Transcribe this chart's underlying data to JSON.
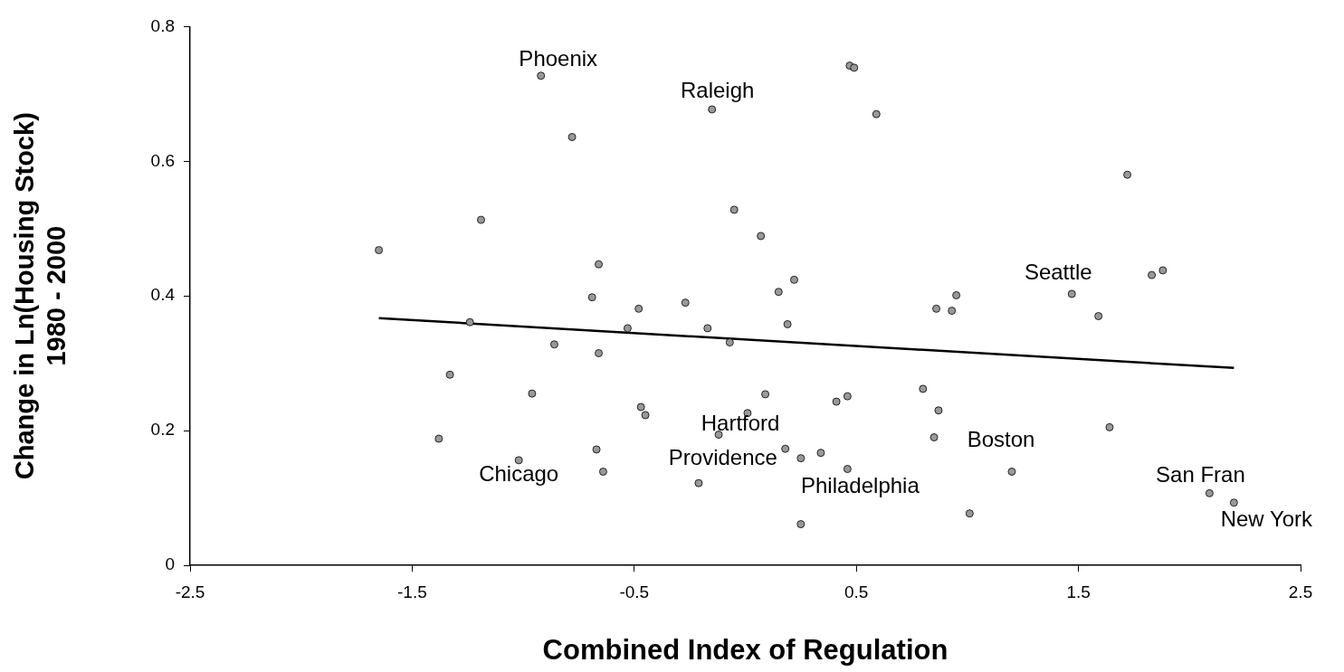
{
  "chart_data": {
    "type": "scatter",
    "xlabel": "Combined Index of Regulation",
    "ylabel": "Change in Ln(Housing Stock)\n1980 - 2000",
    "xlim": [
      -2.5,
      2.5
    ],
    "xticks": [
      -2.5,
      -1.5,
      -0.5,
      0.5,
      1.5,
      2.5
    ],
    "ylim": [
      0,
      0.8
    ],
    "yticks": [
      0,
      0.2,
      0.4,
      0.6,
      0.8
    ],
    "legend": false,
    "series": [
      {
        "color": "#999999",
        "marker": "circle",
        "x": [
          -1.65,
          -1.19,
          -1.24,
          -1.33,
          -1.38,
          -1.02,
          -0.96,
          -0.92,
          -0.78,
          -0.86,
          -0.69,
          -0.66,
          -0.66,
          -0.67,
          -0.64,
          -0.53,
          -0.48,
          -0.47,
          -0.45,
          -0.27,
          -0.17,
          -0.15,
          -0.12,
          -0.21,
          -0.05,
          -0.07,
          0.01,
          0.07,
          0.09,
          0.15,
          0.19,
          0.22,
          0.18,
          0.25,
          0.25,
          0.34,
          0.41,
          0.46,
          0.47,
          0.49,
          0.46,
          0.59,
          0.8,
          0.86,
          0.93,
          0.95,
          0.87,
          0.85,
          1.01,
          1.2,
          1.47,
          1.59,
          1.64,
          1.72,
          1.83,
          1.88,
          2.09,
          2.2
        ],
        "values": [
          0.468,
          0.513,
          0.361,
          0.283,
          0.188,
          0.156,
          0.255,
          0.727,
          0.636,
          0.328,
          0.398,
          0.447,
          0.315,
          0.172,
          0.139,
          0.352,
          0.381,
          0.235,
          0.223,
          0.39,
          0.352,
          0.677,
          0.194,
          0.122,
          0.528,
          0.331,
          0.226,
          0.489,
          0.254,
          0.406,
          0.358,
          0.424,
          0.173,
          0.159,
          0.061,
          0.167,
          0.243,
          0.251,
          0.742,
          0.739,
          0.143,
          0.67,
          0.262,
          0.381,
          0.378,
          0.401,
          0.23,
          0.19,
          0.077,
          0.139,
          0.403,
          0.37,
          0.205,
          0.58,
          0.431,
          0.438,
          0.107,
          0.093
        ]
      },
      {
        "type": "line",
        "color": "#000000",
        "x": [
          -1.65,
          2.2
        ],
        "values": [
          0.367,
          0.293
        ]
      }
    ],
    "annotations": [
      {
        "text": "Phoenix",
        "x": -0.92,
        "y": 0.727
      },
      {
        "text": "Raleigh",
        "x": -0.15,
        "y": 0.677
      },
      {
        "text": "Hartford",
        "x": -0.12,
        "y": 0.194
      },
      {
        "text": "Providence",
        "x": 0.25,
        "y": 0.159
      },
      {
        "text": "Chicago",
        "x": -1.02,
        "y": 0.156
      },
      {
        "text": "Philadelphia",
        "x": 0.46,
        "y": 0.143
      },
      {
        "text": "Boston",
        "x": 0.85,
        "y": 0.19
      },
      {
        "text": "Seattle",
        "x": 1.47,
        "y": 0.403
      },
      {
        "text": "San Fran",
        "x": 2.09,
        "y": 0.107
      },
      {
        "text": "New York",
        "x": 2.2,
        "y": 0.093
      }
    ]
  }
}
